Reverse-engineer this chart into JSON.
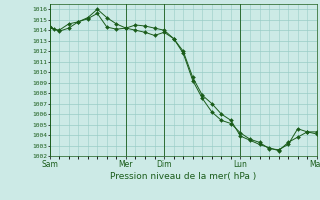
{
  "title": "",
  "xlabel": "Pression niveau de la mer( hPa )",
  "background_color": "#cceae6",
  "grid_color": "#99ccc6",
  "line_color": "#1a5c1a",
  "marker_color": "#1a5c1a",
  "ylim": [
    1002,
    1016.5
  ],
  "yticks": [
    1002,
    1003,
    1004,
    1005,
    1006,
    1007,
    1008,
    1009,
    1010,
    1011,
    1012,
    1013,
    1014,
    1015,
    1016
  ],
  "day_labels": [
    "Sam",
    "Mer",
    "Dim",
    "Lun",
    "Mar"
  ],
  "day_positions": [
    0,
    48,
    72,
    120,
    168
  ],
  "series1_x": [
    0,
    3,
    6,
    12,
    18,
    24,
    30,
    36,
    42,
    48,
    54,
    60,
    66,
    72,
    78,
    84,
    90,
    96,
    102,
    108,
    114,
    120,
    126,
    132,
    138,
    144,
    150,
    156,
    162,
    168
  ],
  "series1_y": [
    1014.3,
    1014.1,
    1014.0,
    1014.6,
    1014.8,
    1015.1,
    1015.6,
    1014.3,
    1014.1,
    1014.2,
    1014.0,
    1013.8,
    1013.5,
    1013.8,
    1013.2,
    1011.8,
    1009.2,
    1007.5,
    1006.2,
    1005.4,
    1005.1,
    1004.2,
    1003.6,
    1003.3,
    1002.7,
    1002.6,
    1003.1,
    1004.6,
    1004.3,
    1004.1
  ],
  "series2_x": [
    0,
    6,
    12,
    18,
    24,
    30,
    36,
    42,
    48,
    54,
    60,
    66,
    72,
    78,
    84,
    90,
    96,
    102,
    108,
    114,
    120,
    126,
    132,
    138,
    144,
    150,
    156,
    162,
    168
  ],
  "series2_y": [
    1014.3,
    1013.9,
    1014.2,
    1014.8,
    1015.2,
    1016.0,
    1015.2,
    1014.6,
    1014.2,
    1014.5,
    1014.4,
    1014.2,
    1014.0,
    1013.2,
    1012.0,
    1009.5,
    1007.8,
    1007.0,
    1006.0,
    1005.4,
    1003.9,
    1003.5,
    1003.1,
    1002.8,
    1002.5,
    1003.3,
    1003.8,
    1004.3,
    1004.3
  ]
}
